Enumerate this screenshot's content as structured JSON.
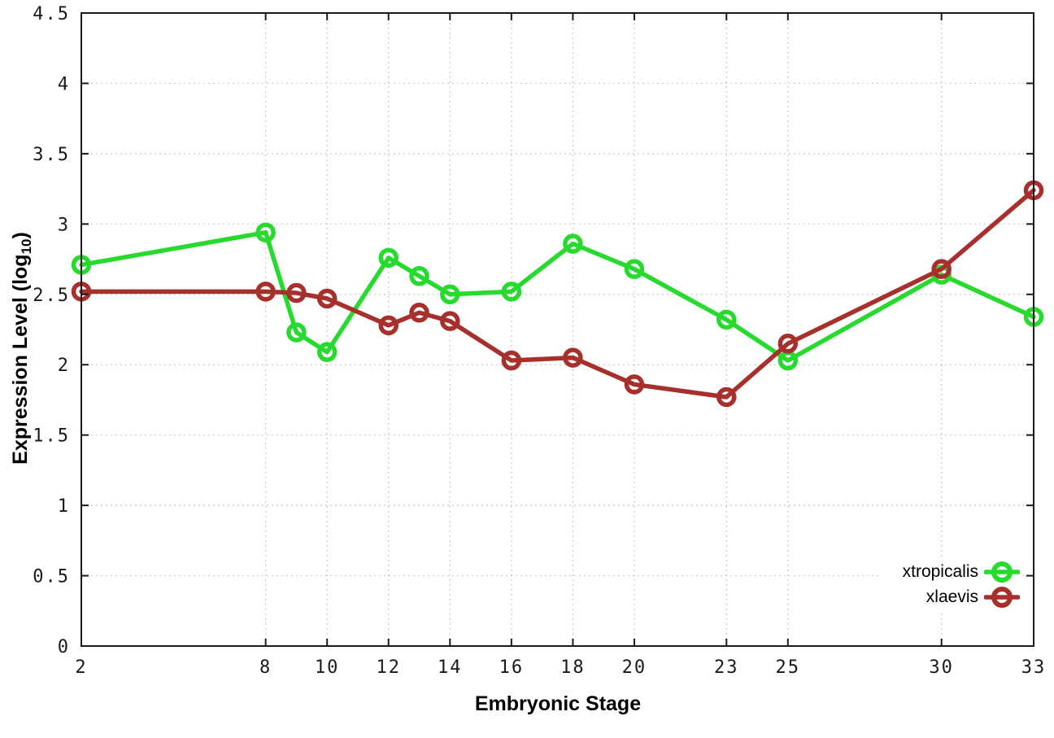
{
  "chart_data": {
    "type": "line",
    "title": "",
    "xlabel": "Embryonic Stage",
    "ylabel": "Expression Level (log10)",
    "ylabel_parts": {
      "prefix": "Expression Level (log",
      "sub": "10",
      "suffix": ")"
    },
    "xlim": [
      2,
      33
    ],
    "ylim": [
      0,
      4.5
    ],
    "x_ticks": [
      2,
      8,
      10,
      12,
      14,
      16,
      18,
      20,
      23,
      25,
      30,
      33
    ],
    "x_tick_labels": [
      "2",
      "8",
      "10",
      "12",
      "14",
      "16",
      "18",
      "20",
      "23",
      "25",
      "30",
      "33"
    ],
    "y_ticks": [
      0,
      0.5,
      1,
      1.5,
      2,
      2.5,
      3,
      3.5,
      4,
      4.5
    ],
    "y_tick_labels": [
      "0",
      "0.5",
      "1",
      "1.5",
      "2",
      "2.5",
      "3",
      "3.5",
      "4",
      "4.5"
    ],
    "grid": true,
    "grid_style": "dotted",
    "legend_position": "bottom-right",
    "marker": "open-circle",
    "colors": {
      "axis": "#1a1a1a",
      "grid": "#b8b8b8",
      "background": "#ffffff"
    },
    "series": [
      {
        "name": "xtropicalis",
        "color": "#26da2e",
        "x": [
          2,
          8,
          9,
          10,
          12,
          13,
          14,
          16,
          18,
          20,
          23,
          25,
          30,
          33
        ],
        "y": [
          2.71,
          2.94,
          2.23,
          2.09,
          2.76,
          2.63,
          2.5,
          2.52,
          2.86,
          2.68,
          2.32,
          2.03,
          2.64,
          2.34
        ]
      },
      {
        "name": "xlaevis",
        "color": "#a8302c",
        "x": [
          2,
          8,
          9,
          10,
          12,
          13,
          14,
          16,
          18,
          20,
          23,
          25,
          30,
          33
        ],
        "y": [
          2.52,
          2.52,
          2.51,
          2.47,
          2.28,
          2.37,
          2.31,
          2.03,
          2.05,
          1.86,
          1.77,
          2.15,
          2.68,
          3.24
        ]
      }
    ]
  }
}
